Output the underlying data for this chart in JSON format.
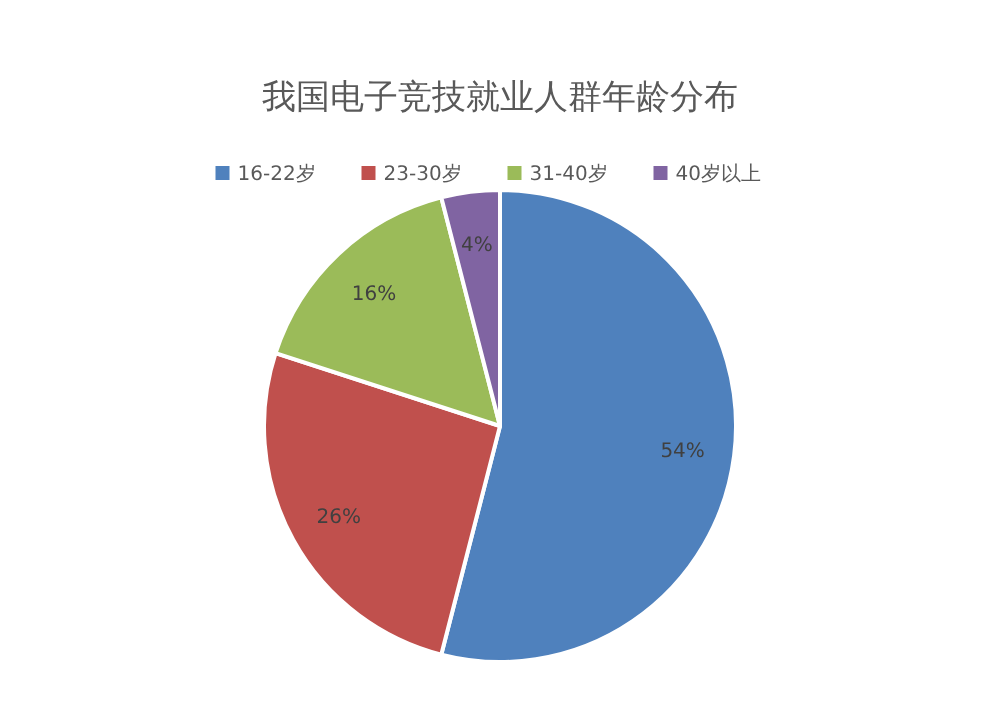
{
  "chart_data": {
    "type": "pie",
    "title": "我国电子竞技就业人群年龄分布",
    "categories": [
      "16-22岁",
      "23-30岁",
      "31-40岁",
      "40岁以上"
    ],
    "values": [
      54,
      26,
      16,
      4
    ],
    "colors": [
      "#4f81bd",
      "#c0504d",
      "#9bbb59",
      "#8064a2"
    ],
    "value_labels": [
      "54%",
      "26%",
      "16%",
      "4%"
    ],
    "legend": "top"
  }
}
